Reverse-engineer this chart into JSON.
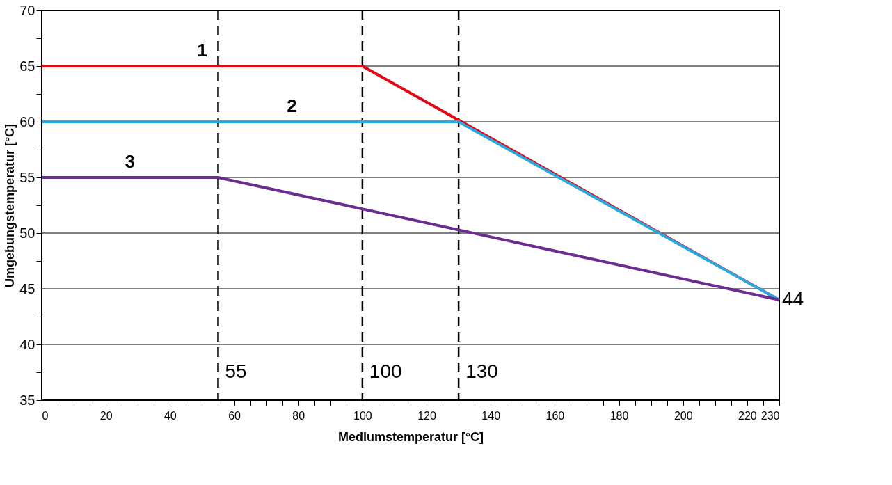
{
  "chart_data": {
    "type": "line",
    "xlabel": "Mediumstemperatur [°C]",
    "ylabel": "Umgebungstemperatur [°C]",
    "xlim": [
      0,
      230
    ],
    "ylim": [
      35,
      70
    ],
    "xticks": [
      0,
      {
        "value": 5,
        "label": null
      },
      {
        "value": 10,
        "label": null
      },
      {
        "value": 15,
        "label": null
      },
      20,
      {
        "value": 25,
        "label": null
      },
      {
        "value": 30,
        "label": null
      },
      {
        "value": 35,
        "label": null
      },
      40,
      {
        "value": 45,
        "label": null
      },
      {
        "value": 50,
        "label": null
      },
      {
        "value": 55,
        "label": null
      },
      60,
      {
        "value": 65,
        "label": null
      },
      {
        "value": 70,
        "label": null
      },
      {
        "value": 75,
        "label": null
      },
      80,
      {
        "value": 85,
        "label": null
      },
      {
        "value": 90,
        "label": null
      },
      {
        "value": 95,
        "label": null
      },
      100,
      {
        "value": 105,
        "label": null
      },
      {
        "value": 110,
        "label": null
      },
      {
        "value": 115,
        "label": null
      },
      120,
      {
        "value": 125,
        "label": null
      },
      {
        "value": 130,
        "label": null
      },
      {
        "value": 135,
        "label": null
      },
      140,
      {
        "value": 145,
        "label": null
      },
      {
        "value": 150,
        "label": null
      },
      {
        "value": 155,
        "label": null
      },
      160,
      {
        "value": 165,
        "label": null
      },
      {
        "value": 170,
        "label": null
      },
      {
        "value": 175,
        "label": null
      },
      180,
      {
        "value": 185,
        "label": null
      },
      {
        "value": 190,
        "label": null
      },
      {
        "value": 195,
        "label": null
      },
      200,
      {
        "value": 205,
        "label": null
      },
      {
        "value": 210,
        "label": null
      },
      {
        "value": 215,
        "label": null
      },
      220,
      {
        "value": 225,
        "label": null
      },
      230
    ],
    "yticks": [
      35,
      {
        "value": 37.5,
        "label": null
      },
      40,
      {
        "value": 42.5,
        "label": null
      },
      45,
      {
        "value": 47.5,
        "label": null
      },
      50,
      {
        "value": 52.5,
        "label": null
      },
      55,
      {
        "value": 57.5,
        "label": null
      },
      60,
      {
        "value": 62.5,
        "label": null
      },
      65,
      {
        "value": 67.5,
        "label": null
      },
      70
    ],
    "grid": "y",
    "marker": "none",
    "line_style": "solid",
    "series": [
      {
        "name": "1",
        "color": "#e30613",
        "x": [
          0,
          100,
          230
        ],
        "values": [
          65,
          65,
          44
        ]
      },
      {
        "name": "2",
        "color": "#2aa9e0",
        "x": [
          0,
          130,
          230
        ],
        "values": [
          60,
          60,
          44
        ]
      },
      {
        "name": "3",
        "color": "#6a2c91",
        "x": [
          0,
          55,
          230
        ],
        "values": [
          55,
          55,
          44
        ]
      }
    ],
    "ref_lines": [
      {
        "axis": "x",
        "value": 55,
        "label": "55",
        "line_style": "dashed",
        "color": "#000000"
      },
      {
        "axis": "x",
        "value": 100,
        "label": "100",
        "line_style": "dashed",
        "color": "#000000"
      },
      {
        "axis": "x",
        "value": 130,
        "label": "130",
        "line_style": "dashed",
        "color": "#000000"
      }
    ],
    "annotations": [
      {
        "text": "44",
        "x": 230,
        "y": 44
      }
    ]
  }
}
